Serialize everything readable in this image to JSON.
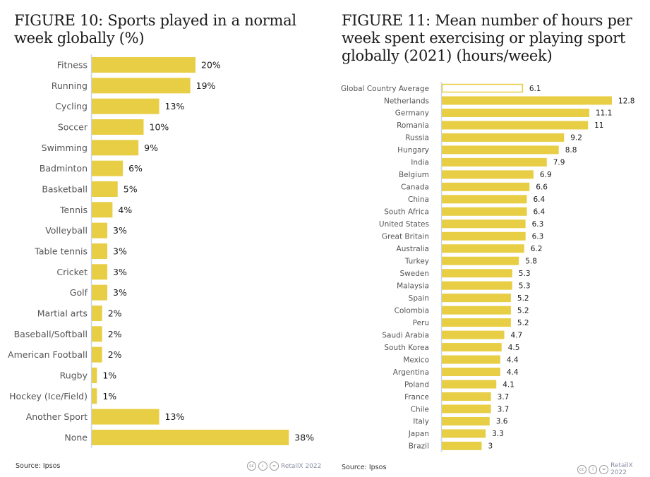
{
  "footer": {
    "source": "Source: Ipsos",
    "credit": "RetailX 2022",
    "license_icons": [
      "cc-icon",
      "by-icon",
      "nd-icon"
    ]
  },
  "colors": {
    "bar": "#E8CE45",
    "highlight_bar_fill": "#FFFFFF",
    "axis": "#C9D3E8",
    "label": "#555555",
    "value": "#1a1a1a"
  },
  "chart_data": [
    {
      "type": "bar",
      "orientation": "horizontal",
      "title": "FIGURE 10: Sports played in a normal week globally (%)",
      "unit": "%",
      "categories": [
        "Fitness",
        "Running",
        "Cycling",
        "Soccer",
        "Swimming",
        "Badminton",
        "Basketball",
        "Tennis",
        "Volleyball",
        "Table tennis",
        "Cricket",
        "Golf",
        "Martial arts",
        "Baseball/Softball",
        "American Football",
        "Rugby",
        "Hockey (Ice/Field)",
        "Another Sport",
        "None"
      ],
      "values": [
        20,
        19,
        13,
        10,
        9,
        6,
        5,
        4,
        3,
        3,
        3,
        3,
        2,
        2,
        2,
        1,
        1,
        13,
        38
      ],
      "value_labels": [
        "20%",
        "19%",
        "13%",
        "10%",
        "9%",
        "6%",
        "5%",
        "4%",
        "3%",
        "3%",
        "3%",
        "3%",
        "2%",
        "2%",
        "2%",
        "1%",
        "1%",
        "13%",
        "38%"
      ],
      "xlim": [
        0,
        40
      ],
      "grid": false
    },
    {
      "type": "bar",
      "orientation": "horizontal",
      "title": "FIGURE 11: Mean number of hours per week spent exercising or playing sport globally (2021) (hours/week)",
      "unit": "hours/week",
      "categories": [
        "Global Country Average",
        "Netherlands",
        "Germany",
        "Romania",
        "Russia",
        "Hungary",
        "India",
        "Belgium",
        "Canada",
        "China",
        "South Africa",
        "United States",
        "Great Britain",
        "Australia",
        "Turkey",
        "Sweden",
        "Malaysia",
        "Spain",
        "Colombia",
        "Peru",
        "Saudi Arabia",
        "South Korea",
        "Mexico",
        "Argentina",
        "Poland",
        "France",
        "Chile",
        "Italy",
        "Japan",
        "Brazil"
      ],
      "values": [
        6.1,
        12.8,
        11.1,
        11,
        9.2,
        8.8,
        7.9,
        6.9,
        6.6,
        6.4,
        6.4,
        6.3,
        6.3,
        6.2,
        5.8,
        5.3,
        5.3,
        5.2,
        5.2,
        5.2,
        4.7,
        4.5,
        4.4,
        4.4,
        4.1,
        3.7,
        3.7,
        3.6,
        3.3,
        3
      ],
      "value_labels": [
        "6.1",
        "12.8",
        "11.1",
        "11",
        "9.2",
        "8.8",
        "7.9",
        "6.9",
        "6.6",
        "6.4",
        "6.4",
        "6.3",
        "6.3",
        "6.2",
        "5.8",
        "5.3",
        "5.3",
        "5.2",
        "5.2",
        "5.2",
        "4.7",
        "4.5",
        "4.4",
        "4.4",
        "4.1",
        "3.7",
        "3.7",
        "3.6",
        "3.3",
        "3"
      ],
      "highlighted": [
        "Global Country Average"
      ],
      "xlim": [
        0,
        13
      ],
      "grid": false
    }
  ]
}
